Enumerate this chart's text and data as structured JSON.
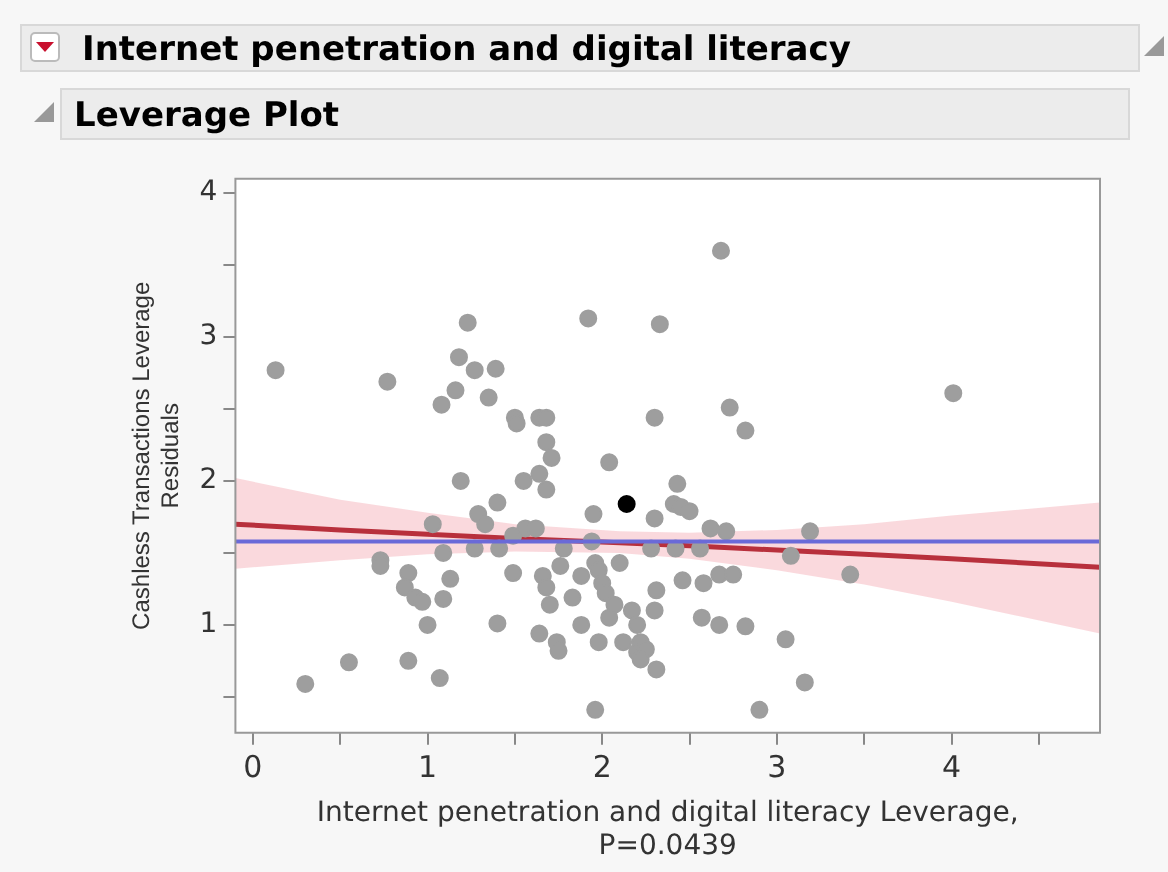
{
  "chart_data": {
    "type": "scatter",
    "title": "Internet penetration and digital literacy",
    "subtitle": "Leverage Plot",
    "xlabel": "Internet penetration and digital literacy Leverage, P=0.0439",
    "ylabel": "Cashless Transactions Leverage Residuals",
    "xlim": [
      -0.1,
      4.85
    ],
    "ylim": [
      0.25,
      4.1
    ],
    "xticks": [
      0,
      {
        "value": 0.5,
        "label": null
      },
      1,
      {
        "value": 1.5,
        "label": null
      },
      2,
      {
        "value": 2.5,
        "label": null
      },
      3,
      {
        "value": 3.5,
        "label": null
      },
      4,
      {
        "value": 4.5,
        "label": null
      }
    ],
    "yticks": [
      {
        "value": 0.5,
        "label": null
      },
      1,
      {
        "value": 1.5,
        "label": null
      },
      2,
      {
        "value": 2.5,
        "label": null
      },
      3,
      {
        "value": 3.5,
        "label": null
      },
      4
    ],
    "grid": false,
    "legend": false,
    "marker": "circle",
    "ref_lines": [
      {
        "axis": "y",
        "value": 1.58,
        "color": "#6a6ad8"
      }
    ],
    "series": [
      {
        "type": "line",
        "color": "#b8303c",
        "marker": "none",
        "x": [
          -0.1,
          0.5,
          1,
          1.5,
          2.1,
          2.5,
          3,
          3.5,
          4,
          4.85
        ],
        "values": [
          1.7,
          1.66,
          1.63,
          1.6,
          1.57,
          1.55,
          1.52,
          1.49,
          1.46,
          1.4
        ],
        "lower": [
          1.39,
          1.45,
          1.49,
          1.51,
          1.5,
          1.46,
          1.38,
          1.28,
          1.16,
          0.94
        ],
        "upper": [
          2.02,
          1.87,
          1.78,
          1.7,
          1.65,
          1.64,
          1.66,
          1.7,
          1.76,
          1.85
        ]
      },
      {
        "color": "#9e9e9e",
        "x": [
          0.13,
          0.3,
          0.55,
          0.77,
          0.73,
          0.73,
          0.89,
          0.87,
          0.93,
          0.97,
          0.89,
          1.0,
          1.07,
          1.09,
          1.13,
          1.03,
          1.09,
          1.08,
          1.16,
          1.18,
          1.23,
          1.27,
          1.39,
          1.35,
          1.19,
          1.29,
          1.27,
          1.33,
          1.4,
          1.41,
          1.4,
          1.49,
          1.5,
          1.51,
          1.49,
          1.55,
          1.56,
          1.64,
          1.64,
          1.68,
          1.68,
          1.71,
          1.68,
          1.62,
          1.66,
          1.68,
          1.7,
          1.64,
          1.74,
          1.75,
          1.76,
          1.78,
          1.83,
          1.88,
          1.88,
          1.92,
          1.96,
          1.95,
          1.94,
          1.96,
          1.98,
          2.0,
          1.98,
          2.04,
          2.04,
          2.02,
          2.07,
          2.1,
          2.12,
          2.17,
          2.2,
          2.22,
          2.2,
          2.25,
          2.22,
          2.31,
          2.3,
          2.31,
          2.3,
          2.33,
          2.3,
          2.28,
          2.68,
          2.73,
          2.82,
          4.01,
          2.43,
          2.41,
          2.45,
          2.5,
          2.62,
          2.71,
          3.19,
          2.42,
          2.56,
          3.08,
          2.46,
          2.58,
          2.67,
          2.75,
          3.42,
          2.57,
          2.67,
          2.82,
          3.05,
          3.16,
          2.9
        ],
        "values": [
          2.77,
          0.59,
          0.74,
          2.69,
          1.45,
          1.41,
          1.36,
          1.26,
          1.19,
          1.16,
          0.75,
          1.0,
          0.63,
          1.18,
          1.32,
          1.7,
          1.5,
          2.53,
          2.63,
          2.86,
          3.1,
          2.77,
          2.78,
          2.58,
          2.0,
          1.77,
          1.53,
          1.7,
          1.85,
          1.53,
          1.01,
          1.36,
          2.44,
          2.4,
          1.62,
          2.0,
          1.67,
          2.05,
          2.44,
          2.44,
          2.27,
          2.16,
          1.94,
          1.67,
          1.34,
          1.26,
          1.14,
          0.94,
          0.88,
          0.82,
          1.41,
          1.53,
          1.19,
          1.34,
          1.0,
          3.13,
          0.41,
          1.77,
          1.58,
          1.43,
          1.38,
          1.29,
          0.88,
          2.13,
          1.05,
          1.22,
          1.14,
          1.43,
          0.88,
          1.1,
          1.0,
          0.88,
          0.81,
          0.83,
          0.76,
          0.69,
          1.1,
          1.24,
          2.44,
          3.09,
          1.74,
          1.53,
          3.6,
          2.51,
          2.35,
          2.61,
          1.98,
          1.84,
          1.82,
          1.79,
          1.67,
          1.65,
          1.65,
          1.53,
          1.53,
          1.48,
          1.31,
          1.29,
          1.35,
          1.35,
          1.35,
          1.05,
          1.0,
          0.99,
          0.9,
          0.6,
          0.41
        ]
      },
      {
        "color": "#000000",
        "x": [
          2.14
        ],
        "values": [
          1.84
        ]
      }
    ]
  }
}
